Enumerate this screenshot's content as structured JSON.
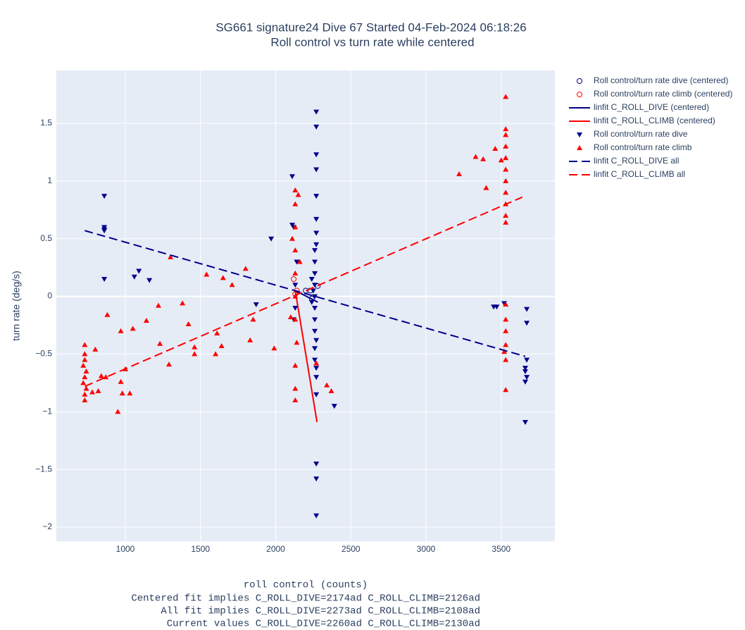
{
  "chart_data": {
    "type": "scatter",
    "title": "SG661 signature24 Dive 67 Started 04-Feb-2024 06:18:26",
    "subtitle": "Roll control vs turn rate while centered",
    "xlabel": "roll control (counts)",
    "notes": [
      "Centered fit implies C_ROLL_DIVE=2174ad C_ROLL_CLIMB=2126ad",
      "All fit implies C_ROLL_DIVE=2273ad C_ROLL_CLIMB=2108ad",
      "Current values C_ROLL_DIVE=2260ad C_ROLL_CLIMB=2130ad"
    ],
    "ylabel": "turn rate (deg/s)",
    "xlim": [
      541,
      3857
    ],
    "ylim": [
      -2.122,
      1.958
    ],
    "xticks": [
      1000,
      1500,
      2000,
      2500,
      3000,
      3500
    ],
    "yticks": [
      {
        "value": -2,
        "label": "−2"
      },
      {
        "value": -1.5,
        "label": "−1.5"
      },
      {
        "value": -1,
        "label": "−1"
      },
      {
        "value": -0.5,
        "label": "−0.5"
      },
      0,
      0.5,
      1,
      1.5
    ],
    "grid": true,
    "legend": "right",
    "series": [
      {
        "name": "Roll control/turn rate dive (centered)",
        "color": "#00008b",
        "mode": "markers",
        "symbol": "circle-open",
        "x": [
          2200,
          2230,
          2280,
          2240
        ],
        "values": [
          0.05,
          0.05,
          0.09,
          -0.02
        ]
      },
      {
        "name": "Roll control/turn rate climb (centered)",
        "color": "#ff0000",
        "mode": "markers",
        "symbol": "circle-open",
        "x": [
          2120,
          2130,
          2140
        ],
        "values": [
          0.15,
          0.02,
          0.05
        ]
      },
      {
        "name": "linfit C_ROLL_DIVE (centered)",
        "color": "#00008b",
        "mode": "lines",
        "dash": false,
        "x": [
          2130,
          2280
        ],
        "values": [
          0.05,
          -0.05
        ]
      },
      {
        "name": "linfit C_ROLL_CLIMB (centered)",
        "color": "#ff0000",
        "mode": "lines",
        "dash": false,
        "x": [
          2130,
          2275
        ],
        "values": [
          0.05,
          -1.09
        ]
      },
      {
        "name": "Roll control/turn rate dive",
        "color": "#00008b",
        "mode": "markers",
        "symbol": "triangle-down",
        "x": [
          860,
          860,
          860,
          860,
          860,
          1060,
          1090,
          1160,
          1970,
          1870,
          2110,
          2110,
          2120,
          2270,
          2270,
          2270,
          2270,
          2270,
          2270,
          2270,
          2260,
          2260,
          2260,
          2260,
          2260,
          2260,
          2260,
          2260,
          2260,
          2260,
          2270,
          2270,
          2270,
          2270,
          2270,
          2270,
          2390,
          3450,
          3470,
          3520,
          3670,
          3670,
          3670,
          3660,
          3660,
          3670,
          3660,
          3660,
          2130,
          2130,
          2140,
          2120,
          2250,
          2240,
          2240,
          2270,
          2270
        ],
        "values": [
          0.87,
          0.6,
          0.58,
          0.57,
          0.15,
          0.17,
          0.22,
          0.14,
          0.5,
          -0.07,
          1.04,
          0.62,
          0.6,
          1.6,
          1.47,
          1.23,
          1.1,
          0.87,
          0.67,
          0.55,
          0.4,
          0.3,
          0.2,
          0.1,
          0,
          -0.1,
          -0.2,
          -0.3,
          -0.45,
          -0.55,
          -0.62,
          -0.7,
          -0.85,
          -1.45,
          -1.58,
          -1.9,
          -0.95,
          -0.09,
          -0.09,
          -0.06,
          -0.11,
          -0.23,
          -0.55,
          -0.62,
          -0.65,
          -0.7,
          -0.74,
          -1.09,
          0.1,
          -0.1,
          0.3,
          -0.2,
          0.05,
          -0.05,
          0.15,
          0.45,
          -0.38
        ]
      },
      {
        "name": "Roll control/turn rate climb",
        "color": "#ff0000",
        "mode": "markers",
        "symbol": "triangle-up",
        "x": [
          730,
          730,
          730,
          720,
          740,
          730,
          720,
          740,
          730,
          730,
          800,
          780,
          820,
          840,
          870,
          880,
          950,
          970,
          970,
          980,
          1000,
          1030,
          1050,
          1140,
          1220,
          1230,
          1290,
          1300,
          1380,
          1420,
          1460,
          1460,
          1540,
          1600,
          1610,
          1640,
          1650,
          1710,
          1800,
          1830,
          1850,
          1990,
          2110,
          2130,
          2130,
          2130,
          2130,
          2130,
          2130,
          2130,
          2140,
          2130,
          2130,
          2130,
          2150,
          2160,
          2100,
          2340,
          2370,
          2270,
          3220,
          3330,
          3380,
          3400,
          3460,
          3500,
          3530,
          3530,
          3530,
          3530,
          3530,
          3530,
          3530,
          3530,
          3530,
          3530,
          3530,
          3530,
          3530,
          3530,
          3530,
          3530,
          3530,
          3520
        ],
        "values": [
          -0.42,
          -0.5,
          -0.55,
          -0.6,
          -0.65,
          -0.7,
          -0.75,
          -0.8,
          -0.85,
          -0.9,
          -0.46,
          -0.83,
          -0.82,
          -0.69,
          -0.7,
          -0.16,
          -1.0,
          -0.74,
          -0.3,
          -0.84,
          -0.63,
          -0.84,
          -0.28,
          -0.21,
          -0.08,
          -0.41,
          -0.59,
          0.34,
          -0.06,
          -0.24,
          -0.44,
          -0.5,
          0.19,
          -0.5,
          -0.32,
          -0.43,
          0.16,
          0.1,
          0.24,
          -0.38,
          -0.2,
          -0.45,
          0.5,
          0.92,
          0.8,
          0.6,
          0.4,
          0.2,
          0,
          -0.2,
          -0.4,
          -0.6,
          -0.8,
          -0.9,
          0.88,
          0.3,
          -0.18,
          -0.77,
          -0.82,
          -0.58,
          1.06,
          1.21,
          1.19,
          0.94,
          1.28,
          1.18,
          1.73,
          1.45,
          1.4,
          1.3,
          1.2,
          1.1,
          1.0,
          0.9,
          0.8,
          0.7,
          0.64,
          -0.07,
          -0.2,
          -0.3,
          -0.42,
          -0.55,
          -0.81,
          -0.48
        ]
      },
      {
        "name": "linfit C_ROLL_DIVE all",
        "color": "#00008b",
        "mode": "lines",
        "dash": true,
        "x": [
          730,
          3660
        ],
        "values": [
          0.57,
          -0.52
        ]
      },
      {
        "name": "linfit C_ROLL_CLIMB all",
        "color": "#ff0000",
        "mode": "lines",
        "dash": true,
        "x": [
          730,
          3640
        ],
        "values": [
          -0.78,
          0.86
        ]
      }
    ]
  }
}
